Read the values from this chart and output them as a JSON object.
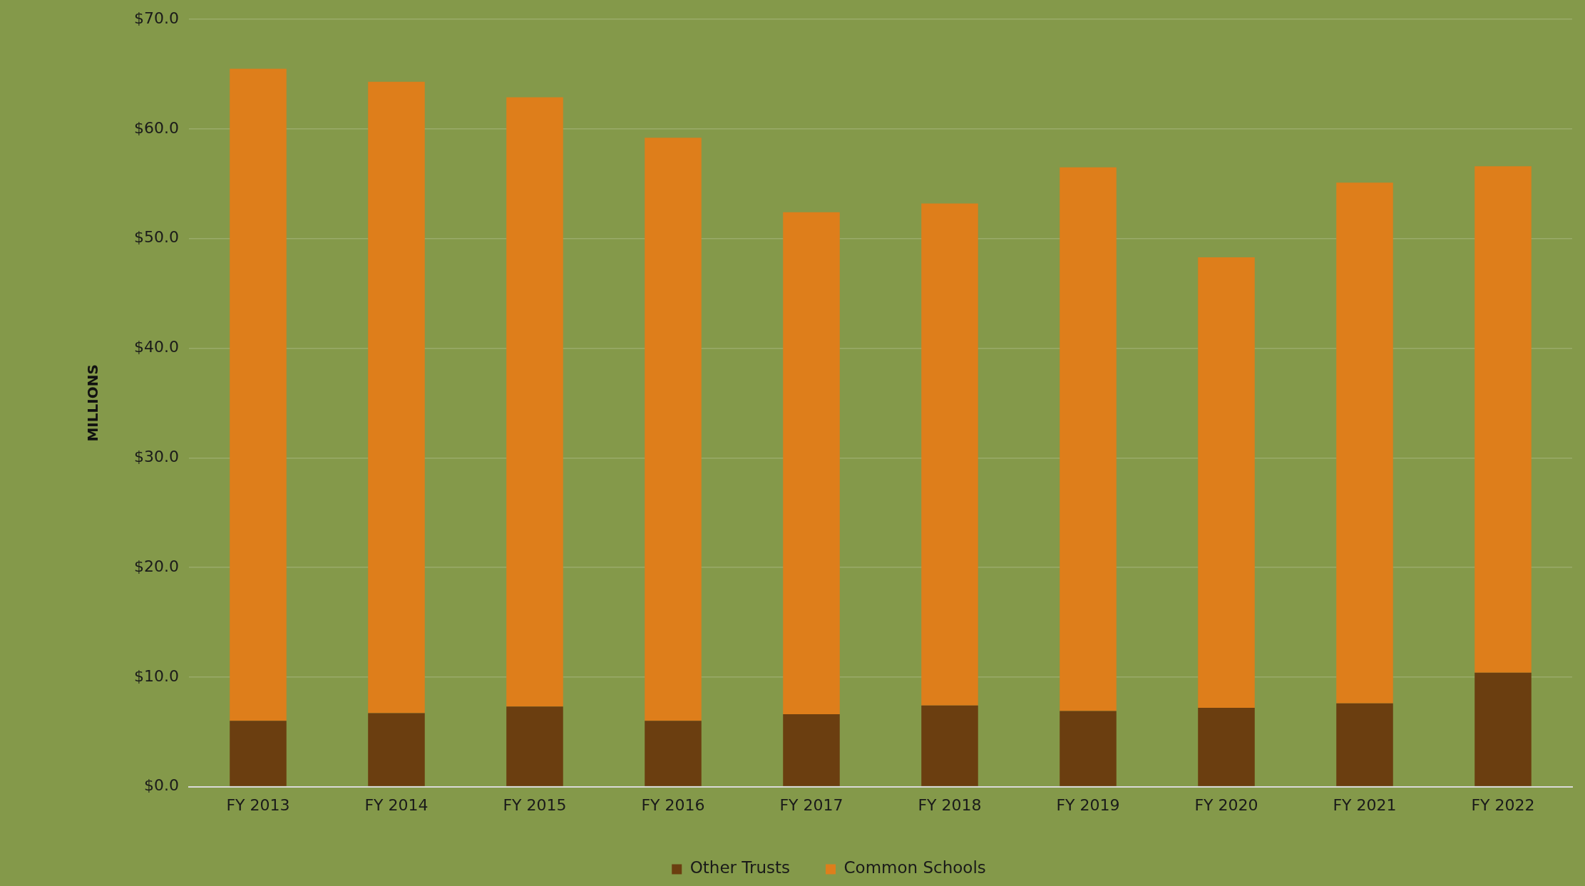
{
  "chart_data": {
    "type": "bar",
    "stacked": true,
    "ylabel": "MILLIONS",
    "categories": [
      "FY 2013",
      "FY 2014",
      "FY 2015",
      "FY 2016",
      "FY 2017",
      "FY 2018",
      "FY 2019",
      "FY 2020",
      "FY 2021",
      "FY 2022"
    ],
    "series": [
      {
        "name": "Other Trusts",
        "color": "#6b3e10",
        "values": [
          6.0,
          6.7,
          7.3,
          6.0,
          6.6,
          7.4,
          6.9,
          7.2,
          7.6,
          10.4
        ]
      },
      {
        "name": "Common Schools",
        "color": "#de7e1b",
        "values": [
          59.5,
          57.6,
          55.6,
          53.2,
          45.8,
          45.8,
          49.6,
          41.1,
          47.5,
          46.2
        ]
      }
    ],
    "ylim": [
      0,
      70
    ],
    "yticks": [
      {
        "value": 0,
        "label": "$0.0"
      },
      {
        "value": 10,
        "label": "$10.0"
      },
      {
        "value": 20,
        "label": "$20.0"
      },
      {
        "value": 30,
        "label": "$30.0"
      },
      {
        "value": 40,
        "label": "$40.0"
      },
      {
        "value": 50,
        "label": "$50.0"
      },
      {
        "value": 60,
        "label": "$60.0"
      },
      {
        "value": 70,
        "label": "$70.0"
      }
    ],
    "grid": "y",
    "legend": "bottom"
  }
}
